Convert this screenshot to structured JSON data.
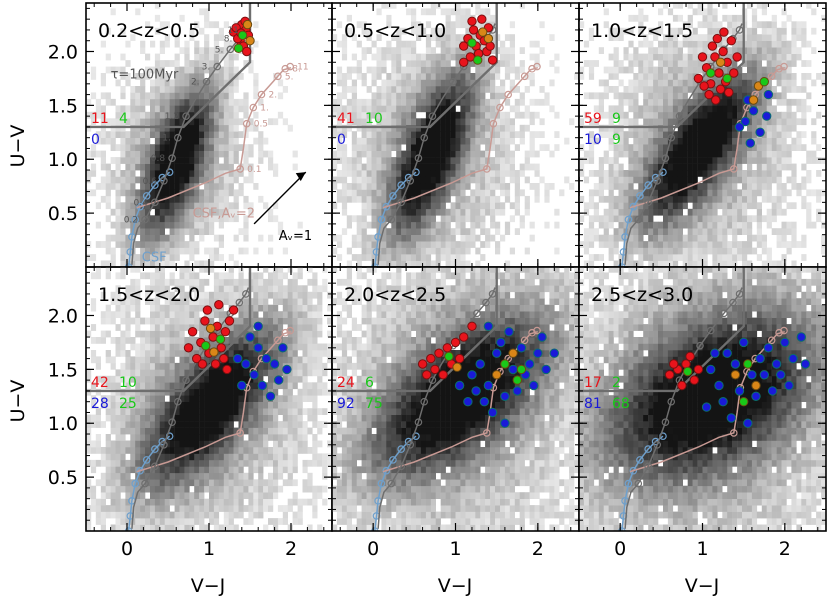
{
  "chart_data": {
    "type": "scatter",
    "title": "",
    "xlabel": "V−J",
    "ylabel": "U−V",
    "xlim": [
      -0.5,
      2.5
    ],
    "ylim": [
      0.0,
      2.45
    ],
    "x_ticks": [
      {
        "v": 0,
        "label": "0"
      },
      {
        "v": 1,
        "label": "1"
      },
      {
        "v": 2,
        "label": "2"
      }
    ],
    "y_ticks": [
      {
        "v": 0.5,
        "label": "0.5"
      },
      {
        "v": 1.0,
        "label": "1.0"
      },
      {
        "v": 1.5,
        "label": "1.5"
      },
      {
        "v": 2.0,
        "label": "2.0"
      }
    ],
    "colors": {
      "quiescent_red": "#e8141c",
      "star_forming_blue": "#1a1ad8",
      "mid_green": "#19c819",
      "tau_track": "#6e6e6e",
      "csf_track": "#6fa0cc",
      "csf_dust_track": "#c89a94",
      "selection_box": "#6e6e6e",
      "orange_fill": "#d98618"
    },
    "selection_box": [
      {
        "x": -0.5,
        "y": 1.3
      },
      {
        "x": 0.69,
        "y": 1.3
      },
      {
        "x": 1.5,
        "y": 1.9
      },
      {
        "x": 1.5,
        "y": 2.45
      }
    ],
    "tau_track": {
      "name": "τ=100Myr",
      "points": [
        {
          "x": 0.06,
          "y": 0.02
        },
        {
          "x": 0.08,
          "y": 0.22
        },
        {
          "x": 0.13,
          "y": 0.36
        },
        {
          "x": 0.22,
          "y": 0.44
        },
        {
          "x": 0.34,
          "y": 0.6
        },
        {
          "x": 0.45,
          "y": 0.8
        },
        {
          "x": 0.55,
          "y": 1.01
        },
        {
          "x": 0.62,
          "y": 1.2
        },
        {
          "x": 0.72,
          "y": 1.4
        },
        {
          "x": 0.83,
          "y": 1.55
        },
        {
          "x": 0.97,
          "y": 1.72
        },
        {
          "x": 1.1,
          "y": 1.86
        },
        {
          "x": 1.26,
          "y": 2.02
        },
        {
          "x": 1.37,
          "y": 2.12
        },
        {
          "x": 1.45,
          "y": 2.2
        },
        {
          "x": 1.48,
          "y": 2.26
        }
      ],
      "ages": [
        {
          "x": 0.22,
          "y": 0.44,
          "label": "0.2"
        },
        {
          "x": 0.34,
          "y": 0.6,
          "label": "0.4"
        },
        {
          "x": 0.45,
          "y": 0.8,
          "label": "0.6"
        },
        {
          "x": 0.55,
          "y": 1.01,
          "label": "0.8"
        },
        {
          "x": 0.62,
          "y": 1.2,
          "label": "1."
        },
        {
          "x": 0.72,
          "y": 1.4,
          "label": "1.2"
        },
        {
          "x": 0.97,
          "y": 1.72,
          "label": "2."
        },
        {
          "x": 1.1,
          "y": 1.86,
          "label": "3."
        },
        {
          "x": 1.26,
          "y": 2.02,
          "label": "5."
        },
        {
          "x": 1.37,
          "y": 2.12,
          "label": "8."
        },
        {
          "x": 1.45,
          "y": 2.2,
          "label": "11"
        }
      ]
    },
    "csf_track": {
      "name": "CSF",
      "points": [
        {
          "x": 0.02,
          "y": 0.0
        },
        {
          "x": 0.04,
          "y": 0.14
        },
        {
          "x": 0.06,
          "y": 0.28
        },
        {
          "x": 0.1,
          "y": 0.44
        },
        {
          "x": 0.16,
          "y": 0.56
        },
        {
          "x": 0.24,
          "y": 0.66
        },
        {
          "x": 0.34,
          "y": 0.76
        },
        {
          "x": 0.43,
          "y": 0.83
        },
        {
          "x": 0.52,
          "y": 0.88
        }
      ]
    },
    "csf_dust_track": {
      "name": "CSF,Aᵥ=2",
      "points": [
        {
          "x": 0.12,
          "y": 0.55
        },
        {
          "x": 0.5,
          "y": 0.64
        },
        {
          "x": 0.95,
          "y": 0.78
        },
        {
          "x": 1.2,
          "y": 0.87
        },
        {
          "x": 1.38,
          "y": 0.91
        },
        {
          "x": 1.42,
          "y": 1.1
        },
        {
          "x": 1.46,
          "y": 1.33
        },
        {
          "x": 1.54,
          "y": 1.48
        },
        {
          "x": 1.64,
          "y": 1.6
        },
        {
          "x": 1.78,
          "y": 1.72
        },
        {
          "x": 1.91,
          "y": 1.83
        },
        {
          "x": 2.0,
          "y": 1.85
        }
      ],
      "ages": [
        {
          "x": 1.38,
          "y": 0.91,
          "label": "0.1"
        },
        {
          "x": 1.46,
          "y": 1.33,
          "label": "0.5"
        },
        {
          "x": 1.54,
          "y": 1.48,
          "label": "1."
        },
        {
          "x": 1.64,
          "y": 1.6,
          "label": "2."
        },
        {
          "x": 1.84,
          "y": 1.77,
          "label": "5."
        },
        {
          "x": 1.93,
          "y": 1.84,
          "label": "8."
        },
        {
          "x": 1.99,
          "y": 1.86,
          "label": "11"
        }
      ]
    },
    "reddening_vector": {
      "label": "Aᵥ=1",
      "from": {
        "x": 1.55,
        "y": 0.4
      },
      "to": {
        "x": 2.18,
        "y": 0.88
      }
    },
    "panels": [
      {
        "title": "0.2<z<0.5",
        "density": {
          "cx": 0.6,
          "cy": 0.98,
          "major": 0.55,
          "minor": 0.2,
          "angle": 62,
          "spread": 0.62
        },
        "counts": {
          "red": "11",
          "green_top": "4",
          "blue": "0",
          "green_bottom": ""
        },
        "red_points": [
          [
            1.3,
            2.18
          ],
          [
            1.4,
            2.25
          ],
          [
            1.45,
            2.2
          ],
          [
            1.38,
            2.1
          ],
          [
            1.42,
            2.05
          ],
          [
            1.35,
            2.12
          ],
          [
            1.48,
            2.15
          ],
          [
            1.33,
            2.22
          ],
          [
            1.44,
            2.28
          ],
          [
            1.39,
            2.17
          ],
          [
            1.46,
            2.0
          ]
        ],
        "green_points": [
          [
            1.41,
            2.15
          ],
          [
            1.47,
            2.25
          ],
          [
            1.36,
            2.03
          ],
          [
            1.5,
            2.1
          ]
        ],
        "blue_points": []
      },
      {
        "title": "0.5<z<1.0",
        "density": {
          "cx": 0.7,
          "cy": 1.05,
          "major": 0.62,
          "minor": 0.22,
          "angle": 60,
          "spread": 0.75
        },
        "counts": {
          "red": "41",
          "green_top": "10",
          "blue": "0",
          "green_bottom": ""
        },
        "red_points": [
          [
            1.1,
            2.05
          ],
          [
            1.15,
            2.12
          ],
          [
            1.22,
            2.2
          ],
          [
            1.3,
            2.15
          ],
          [
            1.25,
            2.05
          ],
          [
            1.35,
            2.1
          ],
          [
            1.4,
            2.22
          ],
          [
            1.18,
            1.95
          ],
          [
            1.28,
            1.98
          ],
          [
            1.38,
            2.0
          ],
          [
            1.2,
            2.28
          ],
          [
            1.32,
            2.3
          ],
          [
            1.1,
            1.9
          ],
          [
            1.42,
            2.05
          ],
          [
            1.45,
            1.92
          ]
        ],
        "green_points": [
          [
            1.2,
            2.08
          ],
          [
            1.33,
            2.18
          ],
          [
            1.27,
            1.92
          ],
          [
            1.4,
            2.12
          ]
        ],
        "blue_points": []
      },
      {
        "title": "1.0<z<1.5",
        "density": {
          "cx": 0.95,
          "cy": 1.1,
          "major": 0.68,
          "minor": 0.24,
          "angle": 45,
          "spread": 0.85
        },
        "counts": {
          "red": "59",
          "green_top": "9",
          "blue": "10",
          "green_bottom": "9"
        },
        "red_points": [
          [
            0.95,
            1.75
          ],
          [
            1.05,
            1.85
          ],
          [
            1.1,
            1.7
          ],
          [
            1.15,
            1.95
          ],
          [
            1.2,
            1.8
          ],
          [
            1.25,
            2.0
          ],
          [
            1.3,
            1.9
          ],
          [
            1.35,
            2.1
          ],
          [
            1.0,
            1.95
          ],
          [
            1.12,
            2.05
          ],
          [
            1.22,
            1.65
          ],
          [
            1.28,
            1.72
          ],
          [
            1.38,
            1.8
          ],
          [
            1.08,
            1.6
          ],
          [
            1.18,
            2.12
          ],
          [
            1.32,
            1.62
          ],
          [
            1.42,
            1.95
          ],
          [
            1.02,
            1.68
          ],
          [
            1.16,
            1.55
          ],
          [
            1.26,
            2.18
          ]
        ],
        "green_points": [
          [
            1.1,
            1.8
          ],
          [
            1.22,
            1.9
          ],
          [
            1.3,
            1.75
          ],
          [
            1.68,
            1.68
          ],
          [
            1.75,
            1.72
          ],
          [
            1.62,
            1.55
          ]
        ],
        "blue_points": [
          [
            1.55,
            1.55
          ],
          [
            1.62,
            1.45
          ],
          [
            1.52,
            1.35
          ],
          [
            1.8,
            1.6
          ],
          [
            1.7,
            1.25
          ],
          [
            1.45,
            1.3
          ],
          [
            1.58,
            1.15
          ],
          [
            1.78,
            1.4
          ]
        ]
      },
      {
        "title": "1.5<z<2.0",
        "density": {
          "cx": 1.0,
          "cy": 1.15,
          "major": 0.75,
          "minor": 0.28,
          "angle": 40,
          "spread": 0.9
        },
        "counts": {
          "red": "42",
          "green_top": "10",
          "blue": "28",
          "green_bottom": "25"
        },
        "red_points": [
          [
            0.8,
            1.85
          ],
          [
            0.9,
            1.75
          ],
          [
            0.95,
            1.95
          ],
          [
            1.0,
            1.65
          ],
          [
            1.05,
            1.8
          ],
          [
            1.1,
            1.9
          ],
          [
            1.15,
            1.7
          ],
          [
            1.2,
            1.85
          ],
          [
            0.85,
            1.6
          ],
          [
            0.92,
            1.55
          ],
          [
            1.08,
            1.55
          ],
          [
            1.18,
            1.6
          ],
          [
            1.25,
            1.95
          ],
          [
            1.3,
            2.05
          ],
          [
            0.75,
            1.7
          ],
          [
            0.98,
            2.05
          ],
          [
            1.12,
            2.1
          ],
          [
            1.22,
            1.5
          ]
        ],
        "green_points": [
          [
            0.96,
            1.72
          ],
          [
            1.06,
            1.66
          ],
          [
            1.14,
            1.78
          ],
          [
            1.02,
            1.88
          ]
        ],
        "blue_points": [
          [
            1.5,
            1.8
          ],
          [
            1.6,
            1.7
          ],
          [
            1.7,
            1.6
          ],
          [
            1.8,
            1.55
          ],
          [
            1.55,
            1.45
          ],
          [
            1.65,
            1.35
          ],
          [
            1.75,
            1.25
          ],
          [
            1.85,
            1.4
          ],
          [
            1.45,
            1.55
          ],
          [
            1.9,
            1.7
          ],
          [
            1.6,
            1.9
          ],
          [
            1.4,
            1.35
          ],
          [
            1.95,
            1.5
          ],
          [
            1.35,
            1.6
          ]
        ]
      },
      {
        "title": "2.0<z<2.5",
        "density": {
          "cx": 1.05,
          "cy": 1.25,
          "major": 0.85,
          "minor": 0.35,
          "angle": 30,
          "spread": 1.1
        },
        "counts": {
          "red": "24",
          "green_top": "6",
          "blue": "92",
          "green_bottom": "75"
        },
        "red_points": [
          [
            0.6,
            1.55
          ],
          [
            0.7,
            1.6
          ],
          [
            0.8,
            1.65
          ],
          [
            0.9,
            1.7
          ],
          [
            0.75,
            1.5
          ],
          [
            0.85,
            1.45
          ],
          [
            1.0,
            1.75
          ],
          [
            1.1,
            1.8
          ],
          [
            0.95,
            1.55
          ],
          [
            1.05,
            1.6
          ],
          [
            0.65,
            1.45
          ],
          [
            1.2,
            1.9
          ]
        ],
        "green_points": [
          [
            0.92,
            1.62
          ],
          [
            1.02,
            1.52
          ],
          [
            1.6,
            1.55
          ],
          [
            1.7,
            1.65
          ],
          [
            1.8,
            1.5
          ],
          [
            1.5,
            1.45
          ],
          [
            1.75,
            1.4
          ]
        ],
        "blue_points": [
          [
            1.2,
            1.45
          ],
          [
            1.3,
            1.55
          ],
          [
            1.4,
            1.35
          ],
          [
            1.5,
            1.65
          ],
          [
            1.6,
            1.25
          ],
          [
            1.7,
            1.5
          ],
          [
            1.8,
            1.7
          ],
          [
            1.9,
            1.55
          ],
          [
            2.0,
            1.65
          ],
          [
            1.35,
            1.2
          ],
          [
            1.45,
            1.1
          ],
          [
            1.55,
            1.75
          ],
          [
            1.65,
            1.85
          ],
          [
            1.75,
            1.3
          ],
          [
            1.85,
            1.45
          ],
          [
            1.95,
            1.35
          ],
          [
            2.1,
            1.5
          ],
          [
            1.25,
            1.3
          ],
          [
            1.15,
            1.2
          ],
          [
            2.2,
            1.65
          ],
          [
            1.6,
            1.0
          ],
          [
            1.4,
            1.9
          ],
          [
            1.05,
            1.35
          ],
          [
            2.05,
            1.8
          ]
        ]
      },
      {
        "title": "2.5<z<3.0",
        "density": {
          "cx": 1.1,
          "cy": 1.25,
          "major": 0.95,
          "minor": 0.45,
          "angle": 20,
          "spread": 1.2
        },
        "counts": {
          "red": "17",
          "green_top": "2",
          "blue": "81",
          "green_bottom": "68"
        },
        "red_points": [
          [
            0.6,
            1.45
          ],
          [
            0.7,
            1.5
          ],
          [
            0.8,
            1.55
          ],
          [
            0.9,
            1.4
          ],
          [
            0.75,
            1.35
          ],
          [
            0.65,
            1.55
          ],
          [
            0.95,
            1.5
          ],
          [
            0.85,
            1.62
          ]
        ],
        "green_points": [
          [
            0.82,
            1.48
          ],
          [
            1.4,
            1.45
          ],
          [
            1.55,
            1.55
          ],
          [
            1.65,
            1.35
          ],
          [
            1.5,
            1.2
          ]
        ],
        "blue_points": [
          [
            1.1,
            1.5
          ],
          [
            1.2,
            1.35
          ],
          [
            1.3,
            1.65
          ],
          [
            1.4,
            1.55
          ],
          [
            1.5,
            1.75
          ],
          [
            1.6,
            1.45
          ],
          [
            1.7,
            1.6
          ],
          [
            1.8,
            1.7
          ],
          [
            1.9,
            1.55
          ],
          [
            2.0,
            1.75
          ],
          [
            2.1,
            1.6
          ],
          [
            2.2,
            1.8
          ],
          [
            1.25,
            1.2
          ],
          [
            1.35,
            1.05
          ],
          [
            1.45,
            1.3
          ],
          [
            1.55,
            1.0
          ],
          [
            1.65,
            1.25
          ],
          [
            1.75,
            1.45
          ],
          [
            1.85,
            1.3
          ],
          [
            1.95,
            1.45
          ],
          [
            2.05,
            1.35
          ],
          [
            1.15,
            1.65
          ],
          [
            2.25,
            1.55
          ],
          [
            1.05,
            1.15
          ]
        ]
      }
    ]
  }
}
